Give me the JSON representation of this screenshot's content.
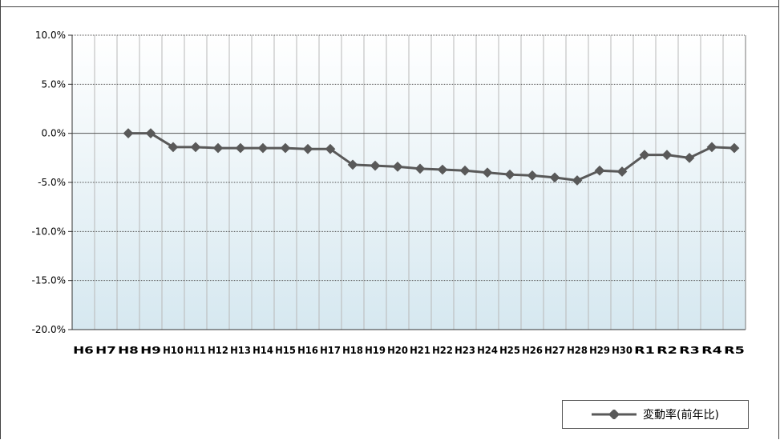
{
  "chart_data": {
    "type": "line",
    "title": "",
    "xlabel": "",
    "ylabel": "",
    "categories": [
      "H6",
      "H7",
      "H8",
      "H9",
      "H10",
      "H11",
      "H12",
      "H13",
      "H14",
      "H15",
      "H16",
      "H17",
      "H18",
      "H19",
      "H20",
      "H21",
      "H22",
      "H23",
      "H24",
      "H25",
      "H26",
      "H27",
      "H28",
      "H29",
      "H30",
      "R1",
      "R2",
      "R3",
      "R4",
      "R5"
    ],
    "yticks": [
      "10.0%",
      "5.0%",
      "0.0%",
      "-5.0%",
      "-10.0%",
      "-15.0%",
      "-20.0%"
    ],
    "ylim": [
      -20,
      10
    ],
    "grid": true,
    "legend": "bottom-right",
    "series": [
      {
        "name": "変動率(前年比)",
        "color": "#595959",
        "values": [
          null,
          null,
          0.0,
          0.0,
          -1.4,
          -1.4,
          -1.5,
          -1.5,
          -1.5,
          -1.5,
          -1.6,
          -1.6,
          -3.2,
          -3.3,
          -3.4,
          -3.6,
          -3.7,
          -3.8,
          -4.0,
          -4.2,
          -4.3,
          -4.5,
          -4.8,
          -3.8,
          -3.9,
          -2.2,
          -2.2,
          -2.5,
          -1.4,
          -1.5
        ]
      }
    ]
  }
}
